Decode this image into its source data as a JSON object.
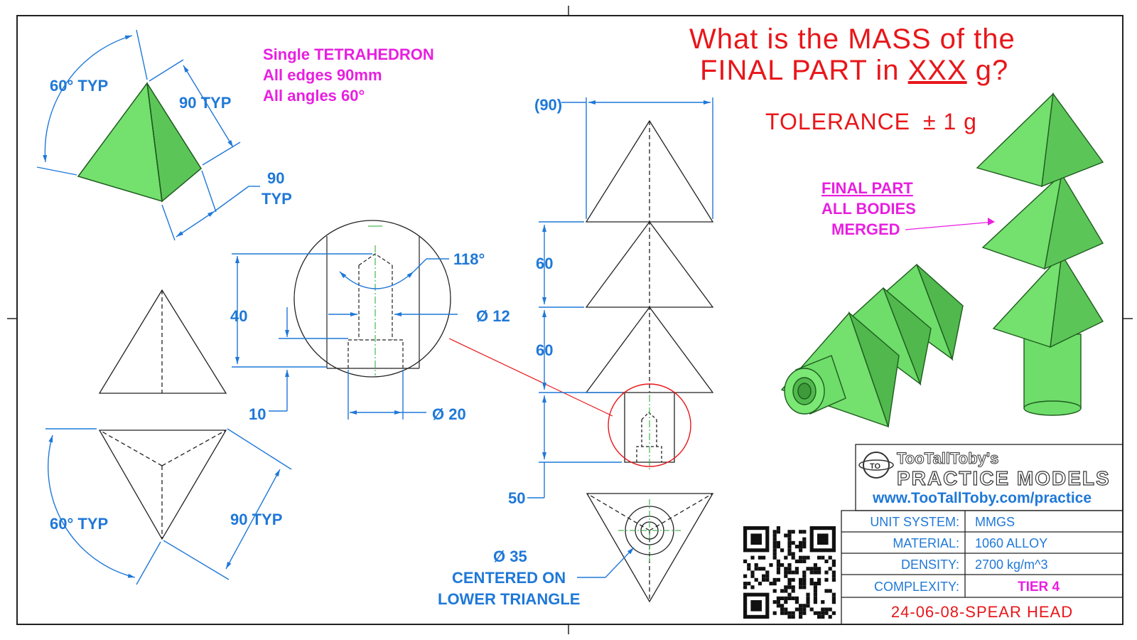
{
  "title": {
    "line1": "What is the MASS of the",
    "line2_prefix": "FINAL PART in ",
    "line2_underlined": "XXX",
    "line2_suffix": " g?"
  },
  "tolerance": {
    "label": "TOLERANCE",
    "value": "± 1 g"
  },
  "tetra_note": {
    "line1": "Single TETRAHEDRON",
    "line2": "All edges 90mm",
    "line3": "All angles 60°"
  },
  "final_part_note": {
    "line1": "FINAL PART",
    "line2": "ALL BODIES",
    "line3": "MERGED"
  },
  "dims": {
    "angle_top": "60° TYP",
    "edge_top": "90 TYP",
    "edge_side_1": "90",
    "edge_side_2": "TYP",
    "angle_bottom": "60° TYP",
    "edge_bottom": "90 TYP",
    "hole_depth": "40",
    "cbore_depth": "10",
    "drill_angle": "118°",
    "hole_dia": "Ø 12",
    "cbore_dia": "Ø 20",
    "width_ref": "(90)",
    "spacing_1": "60",
    "spacing_2": "60",
    "spacing_3": "50",
    "cyl_dia": "Ø 35",
    "cyl_note_1": "CENTERED ON",
    "cyl_note_2": "LOWER TRIANGLE"
  },
  "title_block": {
    "logo_line1": "TooTallToby's",
    "logo_line2": "PRACTICE MODELS",
    "url": "www.TooTallToby.com/practice",
    "rows": [
      {
        "label": "UNIT SYSTEM:",
        "value": "MMGS"
      },
      {
        "label": "MATERIAL:",
        "value": "1060 ALLOY"
      },
      {
        "label": "DENSITY:",
        "value": "2700 kg/m^3"
      },
      {
        "label": "COMPLEXITY:",
        "value": "TIER 4"
      }
    ],
    "part_name": "24-06-08-SPEAR HEAD"
  },
  "colors": {
    "dimension": "#1f78d8",
    "note": "#e81fe0",
    "title": "#e8161a",
    "model_fill": "#6edd6a",
    "model_edge": "#1e5c1e",
    "border": "#222222"
  },
  "icons": {
    "qr": "qr-code-icon",
    "logo": "ttt-logo-icon"
  }
}
